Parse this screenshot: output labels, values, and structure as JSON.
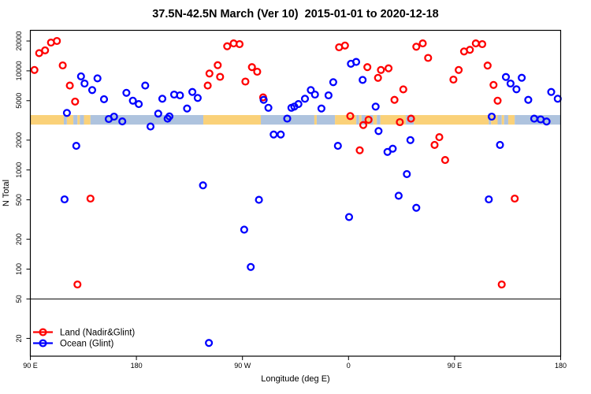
{
  "chart_data": {
    "type": "scatter",
    "title": "37.5N-42.5N March (Ver 10)  2015-01-01 to 2020-12-18",
    "xlabel": "Longitude (deg E)",
    "ylabel": "N Total",
    "x_axis": {
      "unit": "deg E",
      "range": [
        90,
        540
      ],
      "ticks": [
        {
          "pos": 90,
          "label": "90 E"
        },
        {
          "pos": 180,
          "label": "180"
        },
        {
          "pos": 270,
          "label": "90 W"
        },
        {
          "pos": 360,
          "label": "0"
        },
        {
          "pos": 450,
          "label": "90 E"
        },
        {
          "pos": 540,
          "label": "180"
        }
      ]
    },
    "y_axis": {
      "scale": "log",
      "range": [
        13,
        26000
      ],
      "ticks": [
        20,
        50,
        100,
        200,
        500,
        1000,
        2000,
        5000,
        10000,
        20000
      ]
    },
    "hline": 50,
    "map_band": {
      "value_range": [
        2870,
        3580
      ],
      "land_color": "#FAD179",
      "ocean_color": "#AEC3DE",
      "segments": [
        [
          90,
          118.4,
          "land"
        ],
        [
          118.4,
          121,
          "ocean"
        ],
        [
          121,
          126.5,
          "land"
        ],
        [
          126.5,
          130,
          "ocean"
        ],
        [
          130,
          132,
          "land"
        ],
        [
          132,
          135.5,
          "ocean"
        ],
        [
          135.5,
          141,
          "land"
        ],
        [
          141,
          236.8,
          "ocean"
        ],
        [
          236.8,
          285.6,
          "land"
        ],
        [
          285.6,
          331,
          "ocean"
        ],
        [
          331,
          333,
          "land"
        ],
        [
          333,
          348.5,
          "ocean"
        ],
        [
          348.5,
          366.6,
          "land"
        ],
        [
          366.6,
          369,
          "ocean"
        ],
        [
          369,
          371,
          "land"
        ],
        [
          371,
          374.5,
          "ocean"
        ],
        [
          374.5,
          378,
          "land"
        ],
        [
          378,
          381,
          "ocean"
        ],
        [
          381,
          384,
          "land"
        ],
        [
          384,
          387,
          "ocean"
        ],
        [
          387,
          408.7,
          "land"
        ],
        [
          408.7,
          415.4,
          "ocean"
        ],
        [
          415.4,
          479,
          "land"
        ],
        [
          479,
          481,
          "ocean"
        ],
        [
          481,
          486.5,
          "land"
        ],
        [
          486.5,
          490,
          "ocean"
        ],
        [
          490,
          492,
          "land"
        ],
        [
          492,
          495.5,
          "ocean"
        ],
        [
          495.5,
          501,
          "land"
        ],
        [
          501,
          540,
          "ocean"
        ]
      ]
    },
    "series": [
      {
        "name": "Land (Nadir&Glint)",
        "color": "#FF0000",
        "points": [
          [
            93.5,
            10200
          ],
          [
            97.5,
            15100
          ],
          [
            102.5,
            16100
          ],
          [
            107.5,
            19300
          ],
          [
            112.5,
            20000
          ],
          [
            117.5,
            11350
          ],
          [
            123.5,
            7100
          ],
          [
            128,
            4900
          ],
          [
            130,
            70
          ],
          [
            141,
            515
          ],
          [
            240.5,
            7100
          ],
          [
            242,
            9400
          ],
          [
            249,
            11400
          ],
          [
            251,
            8700
          ],
          [
            257,
            17700
          ],
          [
            262.5,
            18900
          ],
          [
            267.5,
            18600
          ],
          [
            272.5,
            7800
          ],
          [
            278,
            10900
          ],
          [
            282.5,
            9800
          ],
          [
            287.5,
            5400
          ],
          [
            352,
            17300
          ],
          [
            357,
            18000
          ],
          [
            361.5,
            3500
          ],
          [
            369.5,
            1580
          ],
          [
            372.5,
            2840
          ],
          [
            377,
            3210
          ],
          [
            376,
            10900
          ],
          [
            385,
            8500
          ],
          [
            387.5,
            10200
          ],
          [
            394,
            10600
          ],
          [
            399,
            5100
          ],
          [
            403.5,
            3040
          ],
          [
            406.5,
            6500
          ],
          [
            413,
            3290
          ],
          [
            417.5,
            17500
          ],
          [
            423,
            18900
          ],
          [
            427.5,
            13500
          ],
          [
            433,
            1790
          ],
          [
            437,
            2140
          ],
          [
            442,
            1260
          ],
          [
            449,
            8160
          ],
          [
            453.5,
            10200
          ],
          [
            458,
            15700
          ],
          [
            463,
            16300
          ],
          [
            468,
            18900
          ],
          [
            473.5,
            18600
          ],
          [
            478,
            11300
          ],
          [
            483,
            7200
          ],
          [
            486.5,
            5000
          ],
          [
            490,
            70
          ],
          [
            501,
            515
          ]
        ]
      },
      {
        "name": "Ocean (Glint)",
        "color": "#0000FF",
        "points": [
          [
            119,
            505
          ],
          [
            121,
            3760
          ],
          [
            129,
            1750
          ],
          [
            133,
            8800
          ],
          [
            136,
            7450
          ],
          [
            142.5,
            6400
          ],
          [
            147,
            8400
          ],
          [
            152.5,
            5170
          ],
          [
            156.5,
            3270
          ],
          [
            161,
            3450
          ],
          [
            168,
            3090
          ],
          [
            171.5,
            6000
          ],
          [
            177,
            5000
          ],
          [
            182,
            4620
          ],
          [
            187.5,
            7100
          ],
          [
            192,
            2740
          ],
          [
            198.5,
            3700
          ],
          [
            202,
            5230
          ],
          [
            206.5,
            3290
          ],
          [
            208,
            3470
          ],
          [
            212,
            5760
          ],
          [
            217,
            5660
          ],
          [
            223,
            4170
          ],
          [
            227.5,
            6120
          ],
          [
            232,
            5330
          ],
          [
            236.5,
            700
          ],
          [
            241.5,
            18
          ],
          [
            271.5,
            250
          ],
          [
            277,
            105
          ],
          [
            284,
            500
          ],
          [
            288,
            5100
          ],
          [
            292,
            4240
          ],
          [
            296.5,
            2280
          ],
          [
            302.5,
            2280
          ],
          [
            308,
            3300
          ],
          [
            311.5,
            4240
          ],
          [
            314,
            4360
          ],
          [
            317.5,
            4620
          ],
          [
            323,
            5230
          ],
          [
            328,
            6400
          ],
          [
            331.5,
            5760
          ],
          [
            337,
            4170
          ],
          [
            343,
            5660
          ],
          [
            347,
            7690
          ],
          [
            351,
            1750
          ],
          [
            360.5,
            335
          ],
          [
            362,
            11800
          ],
          [
            366.5,
            12300
          ],
          [
            372,
            8100
          ],
          [
            383,
            4360
          ],
          [
            385.5,
            2470
          ],
          [
            393,
            1520
          ],
          [
            397.5,
            1640
          ],
          [
            402.5,
            550
          ],
          [
            409.5,
            910
          ],
          [
            412.5,
            2000
          ],
          [
            417.5,
            415
          ],
          [
            479,
            505
          ],
          [
            481.5,
            3450
          ],
          [
            488.5,
            1790
          ],
          [
            493.5,
            8670
          ],
          [
            497.5,
            7450
          ],
          [
            502.5,
            6520
          ],
          [
            507,
            8510
          ],
          [
            512.5,
            5100
          ],
          [
            517.5,
            3290
          ],
          [
            523,
            3240
          ],
          [
            528,
            3080
          ],
          [
            532,
            6120
          ],
          [
            537.5,
            5230
          ]
        ]
      }
    ],
    "legend_position": "bottom-left"
  }
}
